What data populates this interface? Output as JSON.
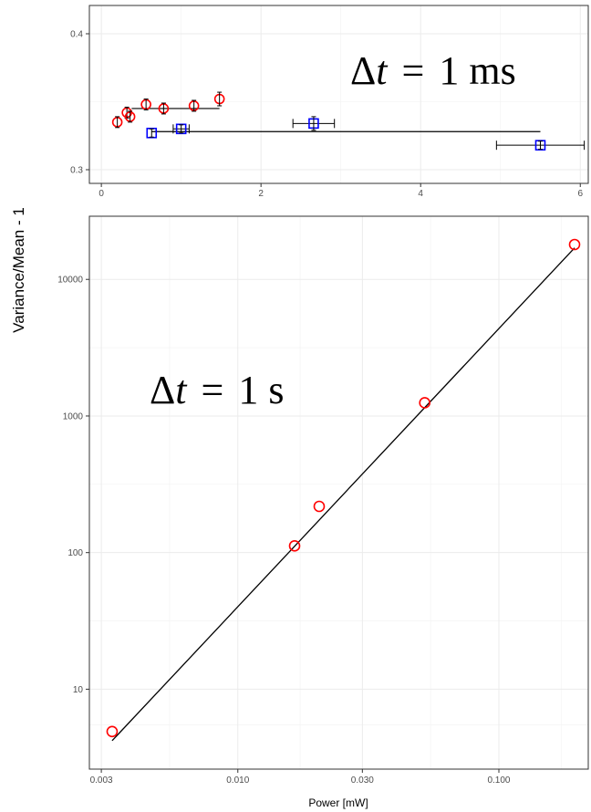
{
  "figure": {
    "y_axis_title": "Variance/Mean - 1"
  },
  "chart_data": [
    {
      "type": "scatter",
      "annotation": {
        "delta": "Δ",
        "var": "t",
        "equals": "=",
        "value": "1 ms"
      },
      "xlim": [
        -0.15,
        6.1
      ],
      "ylim": [
        0.3,
        0.4
      ],
      "x_ticks": [
        0,
        2,
        4,
        6
      ],
      "x_tick_labels": [
        "0",
        "2",
        "4",
        "6"
      ],
      "y_ticks": [
        0.3,
        0.4
      ],
      "y_tick_labels": [
        "0.3",
        "0.4"
      ],
      "grid": true,
      "colors": {
        "red": "#ff0000",
        "blue": "#0000ff",
        "line": "#000000",
        "grid": "#ebebeb"
      },
      "series": [
        {
          "marker": "circle",
          "color": "#ff0000",
          "points": [
            {
              "x": 0.2,
              "y": 0.335,
              "err": 0.004
            },
            {
              "x": 0.32,
              "y": 0.342,
              "err": 0.004
            },
            {
              "x": 0.36,
              "y": 0.339,
              "err": 0.004
            },
            {
              "x": 0.56,
              "y": 0.348,
              "err": 0.004
            },
            {
              "x": 0.78,
              "y": 0.345,
              "err": 0.004
            },
            {
              "x": 1.16,
              "y": 0.347,
              "err": 0.004
            },
            {
              "x": 1.48,
              "y": 0.352,
              "err": 0.005
            }
          ],
          "hline": {
            "x1": 0.38,
            "x2": 1.48,
            "y": 0.345
          }
        },
        {
          "marker": "square",
          "color": "#0000ff",
          "points": [
            {
              "x": 0.63,
              "y": 0.327,
              "err": 0.003
            },
            {
              "x": 1.0,
              "y": 0.33,
              "err": 0.003,
              "xerr": [
                0.9,
                1.1
              ]
            },
            {
              "x": 2.66,
              "y": 0.334,
              "err": 0.005,
              "xerr": [
                2.4,
                2.92
              ]
            },
            {
              "x": 5.5,
              "y": 0.318,
              "err": 0.003,
              "xerr": [
                4.95,
                6.05
              ]
            }
          ],
          "hline": {
            "x1": 0.63,
            "x2": 5.5,
            "y": 0.328
          }
        }
      ]
    },
    {
      "type": "scatter",
      "annotation": {
        "delta": "Δ",
        "var": "t",
        "equals": "=",
        "value": "1 s"
      },
      "x_scale": "log",
      "y_scale": "log",
      "xlabel": "Power [mW]",
      "xlim": [
        0.0027,
        0.22
      ],
      "ylim": [
        2.6,
        29000
      ],
      "x_ticks": [
        0.003,
        0.01,
        0.03,
        0.1
      ],
      "x_tick_labels": [
        "0.003",
        "0.010",
        "0.030",
        "0.100"
      ],
      "y_ticks": [
        10,
        100,
        1000,
        10000
      ],
      "y_tick_labels": [
        "10",
        "100",
        "1000",
        "10000"
      ],
      "grid": true,
      "colors": {
        "points": "#ff0000",
        "fit": "#000000",
        "grid": "#ebebeb"
      },
      "points": [
        {
          "x": 0.0033,
          "y": 4.9
        },
        {
          "x": 0.0165,
          "y": 112
        },
        {
          "x": 0.0205,
          "y": 218
        },
        {
          "x": 0.052,
          "y": 1250
        },
        {
          "x": 0.195,
          "y": 18000
        }
      ],
      "fit_line": [
        {
          "x": 0.0033,
          "y": 4.2
        },
        {
          "x": 0.195,
          "y": 17000
        }
      ]
    }
  ]
}
